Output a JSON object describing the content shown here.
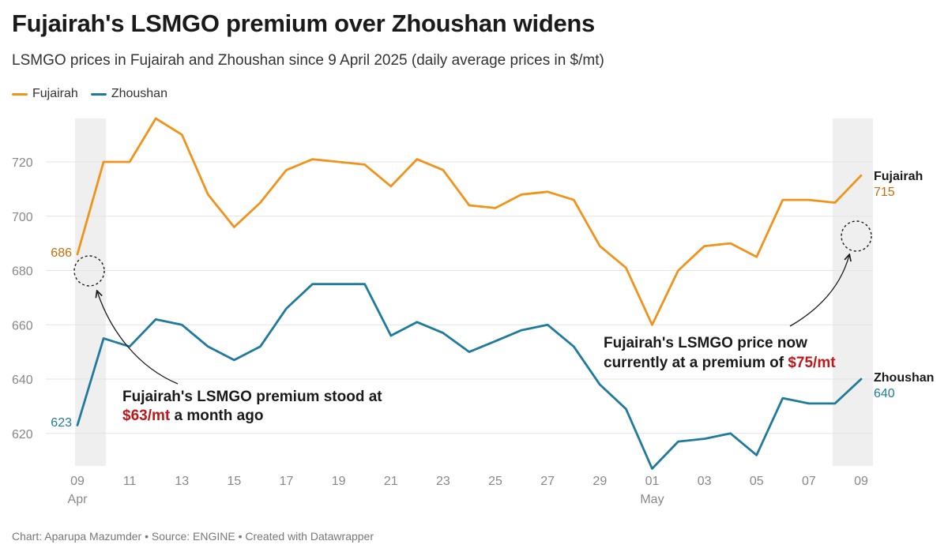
{
  "header": {
    "title": "Fujairah's LSMGO premium over Zhoushan widens",
    "subtitle": "LSMGO prices in Fujairah and Zhoushan since 9 April 2025 (daily average prices in $/mt)"
  },
  "footer": {
    "credit": "Chart: Aparupa Mazumder • Source: ENGINE • Created with Datawrapper"
  },
  "colors": {
    "fujairah": "#f0931b",
    "fujairah_label": "#c46f07",
    "zhoushan": "#1f7a9c",
    "highlight_band": "#efefef",
    "grid": "#e3e3e3",
    "annotation_accent": "#c0171c"
  },
  "chart_data": {
    "type": "line",
    "title": "Fujairah's LSMGO premium over Zhoushan widens",
    "subtitle": "LSMGO prices in Fujairah and Zhoushan since 9 April 2025 (daily average prices in $/mt)",
    "x": [
      "2025-04-09",
      "2025-04-10",
      "2025-04-11",
      "2025-04-12",
      "2025-04-13",
      "2025-04-14",
      "2025-04-15",
      "2025-04-16",
      "2025-04-17",
      "2025-04-18",
      "2025-04-19",
      "2025-04-20",
      "2025-04-21",
      "2025-04-22",
      "2025-04-23",
      "2025-04-24",
      "2025-04-25",
      "2025-04-26",
      "2025-04-27",
      "2025-04-28",
      "2025-04-29",
      "2025-04-30",
      "2025-05-01",
      "2025-05-02",
      "2025-05-03",
      "2025-05-04",
      "2025-05-05",
      "2025-05-06",
      "2025-05-07",
      "2025-05-08",
      "2025-05-09"
    ],
    "series": [
      {
        "name": "Fujairah",
        "values": [
          686,
          720,
          720,
          736,
          730,
          708,
          696,
          705,
          717,
          721,
          720,
          719,
          711,
          721,
          717,
          704,
          703,
          708,
          709,
          706,
          689,
          681,
          660,
          680,
          689,
          690,
          685,
          706,
          706,
          705,
          715
        ]
      },
      {
        "name": "Zhoushan",
        "values": [
          623,
          655,
          652,
          662,
          660,
          652,
          647,
          652,
          666,
          675,
          675,
          675,
          656,
          661,
          657,
          650,
          654,
          658,
          660,
          652,
          638,
          629,
          607,
          617,
          618,
          620,
          612,
          633,
          631,
          631,
          640
        ]
      }
    ],
    "ylim": [
      608,
      736
    ],
    "yticks": [
      "620",
      "640",
      "660",
      "680",
      "700",
      "720"
    ],
    "xticks": [
      {
        "label": "09",
        "sub": "Apr",
        "date": "2025-04-09"
      },
      {
        "label": "11",
        "sub": "",
        "date": "2025-04-11"
      },
      {
        "label": "13",
        "sub": "",
        "date": "2025-04-13"
      },
      {
        "label": "15",
        "sub": "",
        "date": "2025-04-15"
      },
      {
        "label": "17",
        "sub": "",
        "date": "2025-04-17"
      },
      {
        "label": "19",
        "sub": "",
        "date": "2025-04-19"
      },
      {
        "label": "21",
        "sub": "",
        "date": "2025-04-21"
      },
      {
        "label": "23",
        "sub": "",
        "date": "2025-04-23"
      },
      {
        "label": "25",
        "sub": "",
        "date": "2025-04-25"
      },
      {
        "label": "27",
        "sub": "",
        "date": "2025-04-27"
      },
      {
        "label": "29",
        "sub": "",
        "date": "2025-04-29"
      },
      {
        "label": "01",
        "sub": "May",
        "date": "2025-05-01"
      },
      {
        "label": "03",
        "sub": "",
        "date": "2025-05-03"
      },
      {
        "label": "05",
        "sub": "",
        "date": "2025-05-05"
      },
      {
        "label": "07",
        "sub": "",
        "date": "2025-05-07"
      },
      {
        "label": "09",
        "sub": "",
        "date": "2025-05-09"
      }
    ],
    "highlight_ranges": [
      {
        "from": "2025-04-09",
        "to": "2025-04-10"
      },
      {
        "from": "2025-05-08",
        "to": "2025-05-09"
      }
    ],
    "grid": true,
    "legend": "top-left",
    "start_labels": {
      "fujairah": "686",
      "zhoushan": "623"
    },
    "end_labels": {
      "fujairah_name": "Fujairah",
      "fujairah_value": "715",
      "zhoushan_name": "Zhoushan",
      "zhoushan_value": "640"
    },
    "annotations": {
      "left": {
        "line1": "Fujairah's LSMGO premium stood at",
        "highlight": "$63/mt",
        "rest": " a month ago"
      },
      "right": {
        "line1": "Fujairah's LSMGO price now",
        "prefix": "currently at a premium of ",
        "highlight": "$75/mt"
      }
    }
  }
}
